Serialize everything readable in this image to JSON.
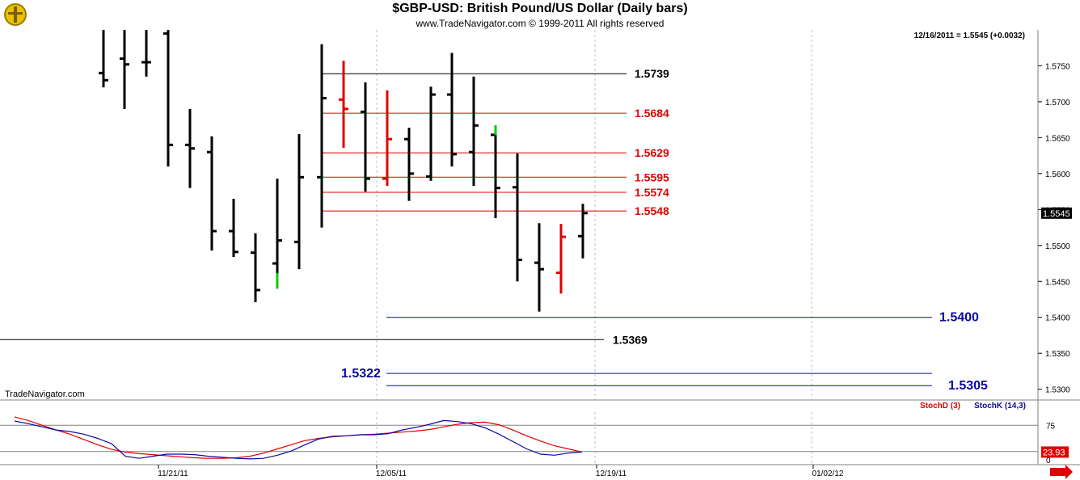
{
  "header": {
    "title": "$GBP-USD:  British Pound/US Dollar  (Daily bars)",
    "copyright": "www.TradeNavigator.com © 1999-2011 All rights reserved",
    "last_quote": "12/16/2011 = 1.5545 (+0.0032)"
  },
  "watermark": "TradeNavigator.com",
  "indicator_legend": {
    "stoch_d": "StochD (3)",
    "stoch_k": "StochK (14,3)"
  },
  "colors": {
    "bar": "#000000",
    "down_highlight": "#e00000",
    "up_highlight": "#00cc00",
    "red_level": "#e00000",
    "blue_level": "#0a0aa0",
    "black_level": "#000000"
  },
  "chart_data": {
    "type": "ohlc",
    "price_axis": {
      "ticks": [
        "1.5750",
        "1.5700",
        "1.5650",
        "1.5600",
        "1.5550",
        "1.5500",
        "1.5450",
        "1.5400",
        "1.5350",
        "1.5300"
      ],
      "ylim": [
        1.5285,
        1.58
      ]
    },
    "current_price_label": "1.5545",
    "date_axis": {
      "labels": [
        "11/21/11",
        "12/05/11",
        "12/19/11",
        "01/02/12"
      ]
    },
    "bars": [
      {
        "o": 1.574,
        "h": 1.58,
        "l": 1.572,
        "c": 1.573,
        "color": "black"
      },
      {
        "o": 1.576,
        "h": 1.58,
        "l": 1.569,
        "c": 1.5752,
        "color": "black"
      },
      {
        "o": 1.5755,
        "h": 1.58,
        "l": 1.5735,
        "c": 1.5755,
        "color": "black"
      },
      {
        "o": 1.5795,
        "h": 1.58,
        "l": 1.561,
        "c": 1.564,
        "color": "black"
      },
      {
        "o": 1.564,
        "h": 1.569,
        "l": 1.558,
        "c": 1.5635,
        "color": "black"
      },
      {
        "o": 1.563,
        "h": 1.5652,
        "l": 1.5493,
        "c": 1.552,
        "color": "black"
      },
      {
        "o": 1.552,
        "h": 1.5565,
        "l": 1.5484,
        "c": 1.5491,
        "color": "black"
      },
      {
        "o": 1.549,
        "h": 1.5517,
        "l": 1.5421,
        "c": 1.5438,
        "color": "black"
      },
      {
        "o": 1.5475,
        "h": 1.5593,
        "l": 1.544,
        "c": 1.5507,
        "color": "black",
        "tail": "green"
      },
      {
        "o": 1.5505,
        "h": 1.5655,
        "l": 1.5467,
        "c": 1.5595,
        "color": "black"
      },
      {
        "o": 1.5595,
        "h": 1.578,
        "l": 1.5525,
        "c": 1.5705,
        "color": "black"
      },
      {
        "o": 1.5703,
        "h": 1.5757,
        "l": 1.5636,
        "c": 1.569,
        "color": "red"
      },
      {
        "o": 1.5686,
        "h": 1.5727,
        "l": 1.5575,
        "c": 1.5593,
        "color": "black"
      },
      {
        "o": 1.5593,
        "h": 1.5716,
        "l": 1.5583,
        "c": 1.5648,
        "color": "red"
      },
      {
        "o": 1.5648,
        "h": 1.5664,
        "l": 1.5562,
        "c": 1.56,
        "color": "black"
      },
      {
        "o": 1.5596,
        "h": 1.5721,
        "l": 1.559,
        "c": 1.571,
        "color": "black"
      },
      {
        "o": 1.571,
        "h": 1.5768,
        "l": 1.561,
        "c": 1.5627,
        "color": "black"
      },
      {
        "o": 1.563,
        "h": 1.5735,
        "l": 1.5583,
        "c": 1.5667,
        "color": "black"
      },
      {
        "o": 1.5654,
        "h": 1.5667,
        "l": 1.5538,
        "c": 1.558,
        "color": "black",
        "head": "green"
      },
      {
        "o": 1.5581,
        "h": 1.5628,
        "l": 1.545,
        "c": 1.548,
        "color": "black"
      },
      {
        "o": 1.5476,
        "h": 1.5531,
        "l": 1.5408,
        "c": 1.5467,
        "color": "black"
      },
      {
        "o": 1.5462,
        "h": 1.553,
        "l": 1.5433,
        "c": 1.5512,
        "color": "red"
      },
      {
        "o": 1.5513,
        "h": 1.5558,
        "l": 1.5482,
        "c": 1.5545,
        "color": "black"
      }
    ],
    "levels": [
      {
        "value": 1.5739,
        "label": "1.5739",
        "color": "black"
      },
      {
        "value": 1.5684,
        "label": "1.5684",
        "color": "red"
      },
      {
        "value": 1.5629,
        "label": "1.5629",
        "color": "red"
      },
      {
        "value": 1.5595,
        "label": "1.5595",
        "color": "red"
      },
      {
        "value": 1.5574,
        "label": "1.5574",
        "color": "red"
      },
      {
        "value": 1.5548,
        "label": "1.5548",
        "color": "red"
      },
      {
        "value": 1.54,
        "label": "1.5400",
        "color": "blue"
      },
      {
        "value": 1.5369,
        "label": "1.5369",
        "color": "black"
      },
      {
        "value": 1.5322,
        "label": "1.5322",
        "color": "blue"
      },
      {
        "value": 1.5305,
        "label": "1.5305",
        "color": "blue"
      }
    ],
    "stochastic": {
      "ticks": [
        "75",
        "25",
        "0"
      ],
      "ylim": [
        0,
        100
      ],
      "current_label": "23.93",
      "stoch_d": [
        91,
        84,
        75,
        66,
        58,
        48,
        38,
        29,
        24,
        21,
        19,
        17,
        15,
        13,
        12,
        12,
        13,
        16,
        22,
        30,
        38,
        46,
        50,
        53,
        55,
        57,
        58,
        60,
        62,
        64,
        67,
        72,
        77,
        80,
        81,
        76,
        66,
        55,
        45,
        36,
        30,
        24
      ],
      "stoch_k": [
        83,
        78,
        72,
        66,
        63,
        58,
        50,
        40,
        16,
        12,
        16,
        20,
        20,
        19,
        16,
        14,
        12,
        11,
        12,
        18,
        26,
        38,
        49,
        54,
        55,
        57,
        57,
        59,
        66,
        71,
        77,
        84,
        82,
        78,
        70,
        58,
        44,
        30,
        20,
        18,
        22,
        24
      ]
    }
  }
}
